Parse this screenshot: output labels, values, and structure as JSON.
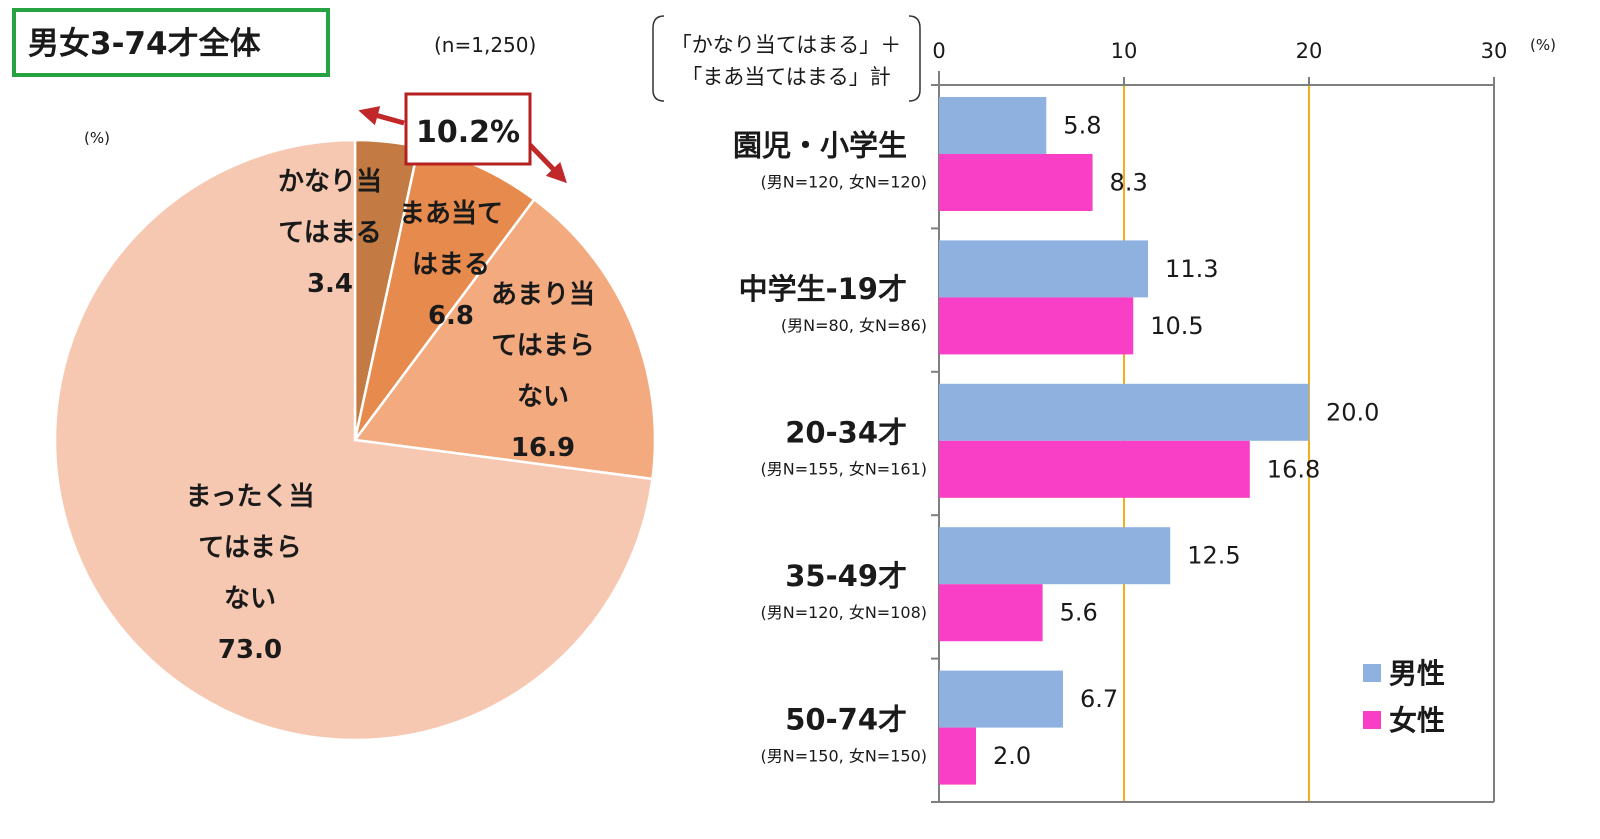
{
  "title": "男女3-74才全体",
  "colors": {
    "title_border": "#27a243",
    "highlight_border": "#b52020",
    "arrow": "#c0282a",
    "gridline": "#f2ae1c",
    "axis": "#7f7f7f",
    "pie": [
      "#c37a43",
      "#e68b4d",
      "#f3aa7f",
      "#f7c8b1"
    ],
    "male": "#8eb1df",
    "female": "#f83fc6"
  },
  "chart_data": [
    {
      "type": "pie",
      "n_label": "(n=1,250)",
      "unit": "(%)",
      "highlight": "10.2%",
      "slices": [
        {
          "label_lines": [
            "かなり当",
            "てはまる"
          ],
          "value": 3.4,
          "value_label": "3.4"
        },
        {
          "label_lines": [
            "まあ当て",
            "はまる"
          ],
          "value": 6.8,
          "value_label": "6.8"
        },
        {
          "label_lines": [
            "あまり当",
            "てはまら",
            "ない"
          ],
          "value": 16.9,
          "value_label": "16.9"
        },
        {
          "label_lines": [
            "まったく当",
            "てはまら",
            "ない"
          ],
          "value": 73.0,
          "value_label": "73.0"
        }
      ]
    },
    {
      "type": "bar",
      "orientation": "horizontal",
      "caption_lines": [
        "「かなり当てはまる」＋",
        "「まあ当てはまる」計"
      ],
      "unit": "(%)",
      "xlim": [
        0,
        30
      ],
      "ticks": [
        0,
        10,
        20,
        30
      ],
      "tick_labels": [
        "0",
        "10",
        "20",
        "30"
      ],
      "gridlines": [
        10,
        20
      ],
      "legend_position": "bottom-right",
      "categories": [
        {
          "name": "園児・小学生",
          "n": "(男N=120, 女N=120)"
        },
        {
          "name": "中学生-19才",
          "n": "(男N=80, 女N=86)"
        },
        {
          "name": "20-34才",
          "n": "(男N=155, 女N=161)"
        },
        {
          "name": "35-49才",
          "n": "(男N=120, 女N=108)"
        },
        {
          "name": "50-74才",
          "n": "(男N=150, 女N=150)"
        }
      ],
      "series": [
        {
          "name": "男性",
          "values": [
            5.8,
            11.3,
            20.0,
            12.5,
            6.7
          ],
          "value_labels": [
            "5.8",
            "11.3",
            "20.0",
            "12.5",
            "6.7"
          ]
        },
        {
          "name": "女性",
          "values": [
            8.3,
            10.5,
            16.8,
            5.6,
            2.0
          ],
          "value_labels": [
            "8.3",
            "10.5",
            "16.8",
            "5.6",
            "2.0"
          ]
        }
      ]
    }
  ]
}
